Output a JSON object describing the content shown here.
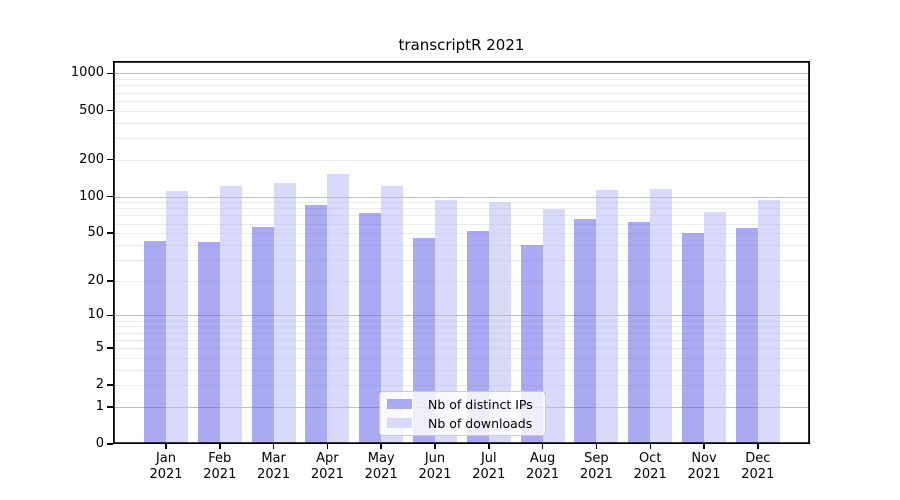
{
  "chart_data": {
    "type": "bar",
    "title": "transcriptR 2021",
    "categories": [
      "Jan 2021",
      "Feb 2021",
      "Mar 2021",
      "Apr 2021",
      "May 2021",
      "Jun 2021",
      "Jul 2021",
      "Aug 2021",
      "Sep 2021",
      "Oct 2021",
      "Nov 2021",
      "Dec 2021"
    ],
    "xticks": [
      {
        "month": "Jan",
        "year": "2021"
      },
      {
        "month": "Feb",
        "year": "2021"
      },
      {
        "month": "Mar",
        "year": "2021"
      },
      {
        "month": "Apr",
        "year": "2021"
      },
      {
        "month": "May",
        "year": "2021"
      },
      {
        "month": "Jun",
        "year": "2021"
      },
      {
        "month": "Jul",
        "year": "2021"
      },
      {
        "month": "Aug",
        "year": "2021"
      },
      {
        "month": "Sep",
        "year": "2021"
      },
      {
        "month": "Oct",
        "year": "2021"
      },
      {
        "month": "Nov",
        "year": "2021"
      },
      {
        "month": "Dec",
        "year": "2021"
      }
    ],
    "series": [
      {
        "name": "Nb of distinct IPs",
        "values": [
          43,
          42,
          56,
          85,
          73,
          46,
          52,
          40,
          66,
          62,
          50,
          55
        ]
      },
      {
        "name": "Nb of downloads",
        "values": [
          111,
          121,
          128,
          152,
          121,
          94,
          90,
          79,
          113,
          115,
          75,
          94
        ]
      }
    ],
    "xlabel": "",
    "ylabel": "",
    "yscale": "log10(value+1)",
    "ytick_values": [
      0,
      1,
      2,
      5,
      10,
      20,
      50,
      100,
      200,
      500,
      1000
    ],
    "ytick_labels": [
      "0",
      "1",
      "2",
      "5",
      "10",
      "20",
      "50",
      "100",
      "200",
      "500",
      "1000"
    ],
    "ylim": [
      0,
      1262
    ],
    "grid": "horizontal, log minor + major lines",
    "legend_position": "inside bottom-center"
  },
  "legend": {
    "items": [
      {
        "label": "Nb of distinct IPs",
        "swatch": "#a9aaf1"
      },
      {
        "label": "Nb of downloads",
        "swatch": "#d9dafa"
      }
    ]
  },
  "colors": {
    "ips_bar_solid": "#a9aaf1",
    "downloads_bar_solid": "#d9dafa",
    "ips_bar_fill": "rgba(83,85,227,0.5)",
    "downloads_bar_fill": "rgba(179,181,245,0.5)",
    "grid_minor": "#ececec",
    "grid_major": "#bfbfbf",
    "axis": "#000000",
    "legend_border": "#cccccc",
    "background": "#ffffff"
  }
}
